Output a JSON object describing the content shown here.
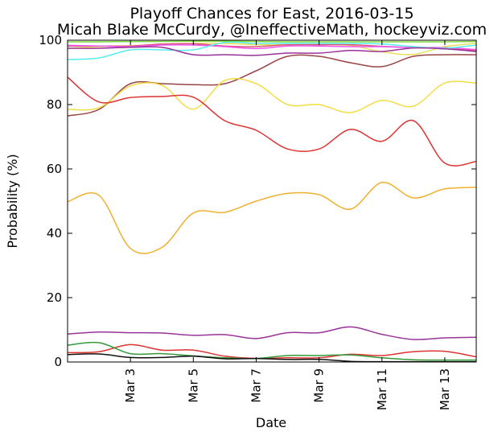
{
  "chart_data": {
    "type": "line",
    "title": "Playoff Chances for East, 2016-03-15",
    "subtitle": "Micah Blake McCurdy, @IneffectiveMath, hockeyviz.com",
    "xlabel": "Date",
    "ylabel": "Probability (%)",
    "ylim": [
      0,
      100
    ],
    "xlim": [
      "2016-03-01",
      "2016-03-14"
    ],
    "y_ticks": [
      "0",
      "20",
      "40",
      "60",
      "80",
      "100"
    ],
    "x_ticks": [
      {
        "date": "2016-03-03",
        "label": "Mar 3"
      },
      {
        "date": "2016-03-05",
        "label": "Mar 5"
      },
      {
        "date": "2016-03-07",
        "label": "Mar 7"
      },
      {
        "date": "2016-03-09",
        "label": "Mar 9"
      },
      {
        "date": "2016-03-11",
        "label": "Mar 11"
      },
      {
        "date": "2016-03-13",
        "label": "Mar 13"
      }
    ],
    "grid": false,
    "x": [
      "2016-03-01",
      "2016-03-02",
      "2016-03-03",
      "2016-03-04",
      "2016-03-05",
      "2016-03-06",
      "2016-03-07",
      "2016-03-08",
      "2016-03-09",
      "2016-03-10",
      "2016-03-11",
      "2016-03-12",
      "2016-03-13",
      "2016-03-14"
    ],
    "series": [
      {
        "color": "#7fdc3a",
        "values": [
          99.5,
          99.5,
          99.6,
          99.6,
          99.7,
          99.7,
          99.6,
          99.5,
          99.5,
          99.5,
          99.5,
          99.5,
          99.5,
          99.6
        ]
      },
      {
        "color": "#e8e05a",
        "values": [
          97.5,
          98.0,
          98.3,
          98.6,
          99.0,
          99.0,
          98.6,
          98.6,
          98.7,
          98.4,
          96.4,
          95.6,
          98.0,
          99.0
        ]
      },
      {
        "color": "#dd5577",
        "values": [
          98.2,
          98.2,
          98.2,
          98.8,
          98.9,
          98.2,
          98.0,
          98.6,
          98.6,
          98.6,
          98.1,
          97.7,
          97.6,
          96.8
        ]
      },
      {
        "color": "#ee55ee",
        "values": [
          98.4,
          98.2,
          98.0,
          98.5,
          98.5,
          98.0,
          97.4,
          98.2,
          98.2,
          98.0,
          98.0,
          97.7,
          97.7,
          97.1
        ]
      },
      {
        "color": "#55eeee",
        "values": [
          94.0,
          94.5,
          97.0,
          97.0,
          97.0,
          99.3,
          99.0,
          99.0,
          99.0,
          99.0,
          98.8,
          98.0,
          97.5,
          98.5
        ]
      },
      {
        "color": "#993399",
        "values": [
          97.5,
          97.5,
          97.8,
          97.8,
          95.5,
          95.5,
          95.3,
          96.0,
          96.0,
          96.8,
          96.5,
          97.6,
          97.3,
          96.5
        ]
      },
      {
        "color": "#994444",
        "values": [
          76.5,
          78.5,
          86.5,
          86.5,
          86.2,
          86.5,
          90.5,
          95.0,
          95.0,
          93.0,
          91.8,
          95.0,
          95.5,
          95.5
        ]
      },
      {
        "color": "#f2dd44",
        "values": [
          78.5,
          79.0,
          85.8,
          86.0,
          78.6,
          87.5,
          86.5,
          80.0,
          80.0,
          77.5,
          81.3,
          79.5,
          86.7,
          86.7
        ]
      },
      {
        "color": "#dd3333",
        "values": [
          88.5,
          80.8,
          82.2,
          82.5,
          82.3,
          75.0,
          72.0,
          66.2,
          66.2,
          72.3,
          68.6,
          75.0,
          61.8,
          62.3
        ]
      },
      {
        "color": "#f0b030",
        "values": [
          49.8,
          51.8,
          35.3,
          35.6,
          46.3,
          46.5,
          50.0,
          52.4,
          52.0,
          47.5,
          55.8,
          51.0,
          53.8,
          54.3
        ]
      },
      {
        "color": "#993399",
        "values": [
          8.7,
          9.3,
          9.1,
          9.0,
          8.3,
          8.5,
          7.3,
          9.1,
          9.1,
          10.9,
          8.6,
          7.0,
          7.5,
          7.7
        ]
      },
      {
        "color": "#dd3333",
        "values": [
          2.9,
          3.2,
          5.4,
          3.7,
          3.7,
          1.8,
          1.1,
          1.3,
          1.3,
          2.4,
          2.0,
          3.2,
          3.3,
          1.6
        ]
      },
      {
        "color": "#33993a",
        "values": [
          5.2,
          6.0,
          2.6,
          2.6,
          1.9,
          1.3,
          1.1,
          2.0,
          2.0,
          2.2,
          1.3,
          0.7,
          0.6,
          0.6
        ]
      },
      {
        "color": "#111111",
        "values": [
          2.3,
          2.5,
          1.4,
          1.4,
          1.8,
          1.0,
          1.1,
          0.8,
          0.8,
          0.2,
          0.1,
          0.1,
          0.1,
          0.1
        ]
      }
    ]
  }
}
